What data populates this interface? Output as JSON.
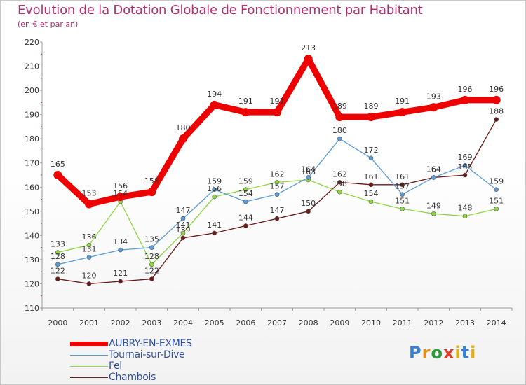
{
  "title": "Evolution de la Dotation Globale de Fonctionnement par Habitant",
  "subtitle": "(en € et par an)",
  "logo": "Proxiti",
  "chart_data": {
    "type": "line",
    "title": "Evolution de la Dotation Globale de Fonctionnement par Habitant",
    "ylabel": "(en € et par an)",
    "xlabel": "",
    "ylim": [
      110,
      220
    ],
    "yticks": [
      110,
      120,
      130,
      140,
      150,
      160,
      170,
      180,
      190,
      200,
      210,
      220
    ],
    "categories": [
      "2000",
      "2001",
      "2002",
      "2003",
      "2004",
      "2005",
      "2006",
      "2007",
      "2008",
      "2009",
      "2010",
      "2011",
      "2012",
      "2013",
      "2014"
    ],
    "grid": false,
    "legend_position": "bottom-left",
    "series": [
      {
        "name": "AUBRY-EN-EXMES",
        "color": "#ee0000",
        "values": [
          165,
          153,
          156,
          158,
          180,
          194,
          191,
          191,
          213,
          189,
          189,
          191,
          193,
          196,
          196
        ]
      },
      {
        "name": "Tournai-sur-Dive",
        "color": "#5b9bd5",
        "values": [
          128,
          131,
          134,
          135,
          147,
          159,
          154,
          157,
          164,
          180,
          172,
          157,
          164,
          169,
          159
        ]
      },
      {
        "name": "Fel",
        "color": "#8fd640",
        "values": [
          133,
          136,
          154,
          128,
          141,
          156,
          159,
          162,
          163,
          158,
          154,
          151,
          149,
          148,
          151
        ]
      },
      {
        "name": "Chambois",
        "color": "#6b1a1a",
        "values": [
          122,
          120,
          121,
          122,
          139,
          141,
          144,
          147,
          150,
          162,
          161,
          161,
          164,
          165,
          188
        ]
      }
    ]
  }
}
